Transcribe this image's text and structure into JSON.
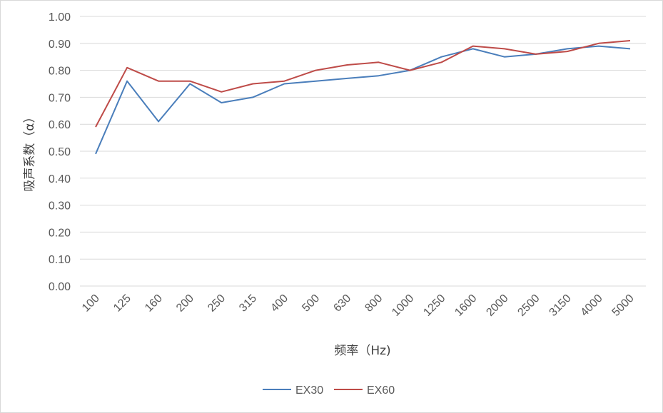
{
  "chart_data": {
    "type": "line",
    "xlabel": "频率（Hz)",
    "ylabel": "吸声系数（α）",
    "categories": [
      "100",
      "125",
      "160",
      "200",
      "250",
      "315",
      "400",
      "500",
      "630",
      "800",
      "1000",
      "1250",
      "1600",
      "2000",
      "2500",
      "3150",
      "4000",
      "5000"
    ],
    "ylim": [
      0,
      1
    ],
    "yticks": [
      "0.00",
      "0.10",
      "0.20",
      "0.30",
      "0.40",
      "0.50",
      "0.60",
      "0.70",
      "0.80",
      "0.90",
      "1.00"
    ],
    "grid": true,
    "legend_position": "bottom",
    "series": [
      {
        "name": "EX30",
        "color": "#4a7ebb",
        "values": [
          0.49,
          0.76,
          0.61,
          0.75,
          0.68,
          0.7,
          0.75,
          0.76,
          0.77,
          0.78,
          0.8,
          0.85,
          0.88,
          0.85,
          0.86,
          0.88,
          0.89,
          0.88
        ]
      },
      {
        "name": "EX60",
        "color": "#be4b48",
        "values": [
          0.59,
          0.81,
          0.76,
          0.76,
          0.72,
          0.75,
          0.76,
          0.8,
          0.82,
          0.83,
          0.8,
          0.83,
          0.89,
          0.88,
          0.86,
          0.87,
          0.9,
          0.91
        ]
      }
    ]
  }
}
